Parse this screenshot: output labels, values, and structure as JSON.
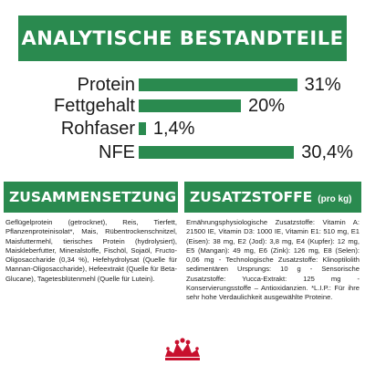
{
  "header": {
    "title": "ANALYTISCHE BESTANDTEILE"
  },
  "nutrients": [
    {
      "label": "Protein",
      "value": "31%",
      "level": 31
    },
    {
      "label": "Fettgehalt",
      "value": "20%",
      "level": 20
    },
    {
      "label": "Rohfaser",
      "value": "1,4%",
      "level": 1.4
    },
    {
      "label": "NFE",
      "value": "30,4%",
      "level": 30.4
    }
  ],
  "composition": {
    "title": "ZUSAMMENSETZUNG",
    "text": "Geflügelprotein (getrocknet), Reis, Tierfett, Pflanzenproteinisolat*, Mais, Rübentrockenschnitzel, Maisfuttermehl, tierisches Protein (hydrolysiert), Maiskleberfutter, Mineralstoffe, Fischöl, Sojaöl, Fructo-Oligosaccharide (0,34 %), Hefehydrolysat (Quelle für Mannan-Oligosaccharide), Hefeextrakt (Quelle für Beta-Glucane), Tagetesblütenmehl (Quelle für Lutein)."
  },
  "additives": {
    "title": "ZUSATZSTOFFE",
    "subtitle": "(pro kg)",
    "text": "Ernährungsphysiologische Zusatzstoffe: Vitamin A: 21500 IE, Vitamin D3: 1000 IE, Vitamin E1: 510 mg, E1 (Eisen): 38 mg, E2 (Jod): 3,8 mg, E4 (Kupfer): 12 mg, E5 (Mangan): 49 mg, E6 (Zink): 126 mg, E8 (Selen): 0,06 mg - Technologische Zusatzstoffe: Klinoptilolith sedimentären Ursprungs: 10 g - Sensorische Zusatzstoffe: Yucca-Extrakt: 125 mg - Konservierungsstoffe – Antioxidanzien. *L.I.P.: Für ihre sehr hohe Verdaulichkeit ausgewählte Proteine."
  },
  "colors": {
    "brand_green": "#2a8a4f",
    "logo_red": "#c8102e"
  },
  "logo": {
    "name": "royal-canin-crown-logo"
  }
}
